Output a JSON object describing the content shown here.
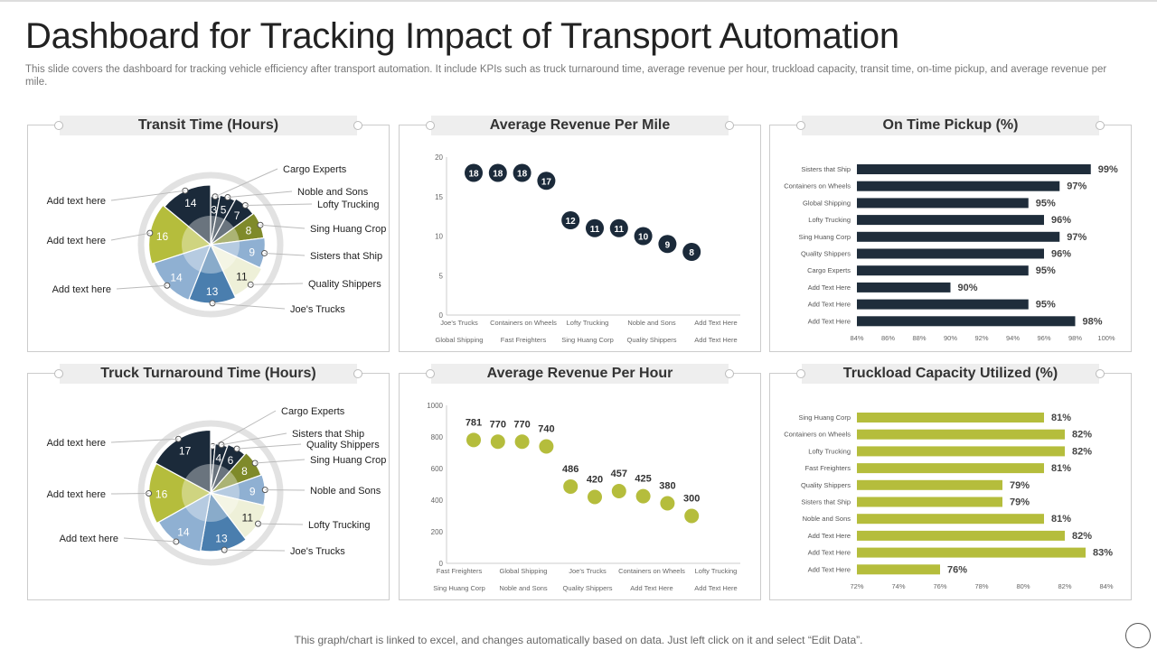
{
  "title": "Dashboard for Tracking Impact of Transport Automation",
  "subtitle": "This slide covers the dashboard for tracking vehicle efficiency after transport automation. It include KPIs such as truck turnaround time, average revenue per hour, truckload capacity, transit time, on-time pickup, and average revenue per mile.",
  "footer": "This graph/chart is linked to excel,  and changes automatically based on data. Just left click on it and select “Edit Data”.",
  "colors": {
    "navy": "#1b2a3a",
    "olive": "#7f8a2a",
    "lime": "#b5bd3c",
    "lightblue": "#8fb0d2",
    "blue": "#4a7eae",
    "cream": "#eef0d8",
    "bar_navy": "#1f2d3b",
    "bar_lime": "#b5bd3c"
  },
  "chart_data": [
    {
      "type": "pie",
      "title": "Transit Time (Hours)",
      "slices": [
        {
          "label": "Cargo Experts",
          "value": 3
        },
        {
          "label": "Noble and Sons",
          "value": 5
        },
        {
          "label": "Lofty Trucking",
          "value": 7
        },
        {
          "label": "Sing Huang Crop",
          "value": 8
        },
        {
          "label": "Sisters that Ship",
          "value": 9
        },
        {
          "label": "Quality Shippers",
          "value": 11
        },
        {
          "label": "Joe's Trucks",
          "value": 13
        },
        {
          "label": "Add text here",
          "value": 14
        },
        {
          "label": "Add text here",
          "value": 16
        },
        {
          "label": "Add text here",
          "value": 14
        }
      ]
    },
    {
      "type": "scatter",
      "title": "Average Revenue Per Mile",
      "ylim": [
        0,
        20
      ],
      "yticks": [
        0,
        5,
        10,
        15,
        20
      ],
      "xlabels_top": [
        "Joe's Trucks",
        "Containers on Wheels",
        "Lofty Trucking",
        "Noble and Sons",
        "Add Text Here"
      ],
      "xlabels_bottom": [
        "Global Shipping",
        "Fast Freighters",
        "Sing Huang Corp",
        "Quality Shippers",
        "Add Text Here"
      ],
      "values": [
        18,
        18,
        18,
        17,
        12,
        11,
        11,
        10,
        9,
        8
      ]
    },
    {
      "type": "bar",
      "orientation": "horizontal",
      "title": "On Time Pickup (%)",
      "xlim": [
        84,
        100
      ],
      "xticks": [
        84,
        86,
        88,
        90,
        92,
        94,
        96,
        98,
        100
      ],
      "categories": [
        "Sisters that Ship",
        "Containers on Wheels",
        "Global Shipping",
        "Lofty Trucking",
        "Sing Huang Corp",
        "Quality Shippers",
        "Cargo Experts",
        "Add Text Here",
        "Add Text Here",
        "Add Text Here"
      ],
      "values": [
        99,
        97,
        95,
        96,
        97,
        96,
        95,
        90,
        95,
        98
      ]
    },
    {
      "type": "pie",
      "title": "Truck Turnaround Time (Hours)",
      "slices": [
        {
          "label": "Cargo Experts",
          "value": null
        },
        {
          "label": "Sisters that Ship",
          "value": 4
        },
        {
          "label": "Quality Shippers",
          "value": 6
        },
        {
          "label": "Sing Huang Crop",
          "value": 8
        },
        {
          "label": "Noble and Sons",
          "value": 9
        },
        {
          "label": "Lofty Trucking",
          "value": 11
        },
        {
          "label": "Joe's Trucks",
          "value": 13
        },
        {
          "label": "Add text here",
          "value": 14
        },
        {
          "label": "Add text here",
          "value": 16
        },
        {
          "label": "Add text here",
          "value": 17
        }
      ]
    },
    {
      "type": "scatter",
      "title": "Average Revenue Per Hour",
      "ylim": [
        0,
        1000
      ],
      "yticks": [
        0,
        200,
        400,
        600,
        800,
        1000
      ],
      "xlabels_top": [
        "Fast Freighters",
        "Global Shipping",
        "Joe's Trucks",
        "Containers on Wheels",
        "Lofty Trucking"
      ],
      "xlabels_bottom": [
        "Sing Huang Corp",
        "Noble and Sons",
        "Quality Shippers",
        "Add Text Here",
        "Add Text Here"
      ],
      "values": [
        781,
        770,
        770,
        740,
        486,
        420,
        457,
        425,
        380,
        300
      ]
    },
    {
      "type": "bar",
      "orientation": "horizontal",
      "title": "Truckload Capacity Utilized (%)",
      "xlim": [
        72,
        84
      ],
      "xticks": [
        72,
        74,
        76,
        78,
        80,
        82,
        84
      ],
      "categories": [
        "Sing Huang Corp",
        "Containers on Wheels",
        "Lofty Trucking",
        "Fast Freighters",
        "Quality Shippers",
        "Sisters that Ship",
        "Noble and Sons",
        "Add Text Here",
        "Add Text Here",
        "Add Text Here"
      ],
      "values": [
        81,
        82,
        82,
        81,
        79,
        79,
        81,
        82,
        83,
        76
      ]
    }
  ]
}
